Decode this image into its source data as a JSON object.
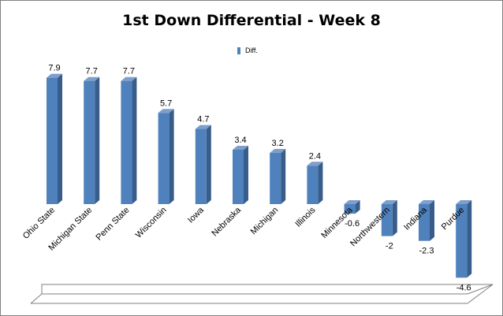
{
  "chart_data": {
    "type": "bar",
    "title": "1st Down Differential - Week 8",
    "categories": [
      "Ohio State",
      "Michigan State",
      "Penn State",
      "Wisconsin",
      "Iowa",
      "Nebraska",
      "Michigan",
      "Illinois",
      "Minnesota",
      "Northwestern",
      "Indiana",
      "Purdue"
    ],
    "series": [
      {
        "name": "Diff.",
        "values": [
          7.9,
          7.7,
          7.7,
          5.7,
          4.7,
          3.4,
          3.2,
          2.4,
          -0.6,
          -2,
          -2.3,
          -4.6
        ]
      }
    ],
    "data_labels": [
      "7.9",
      "7.7",
      "7.7",
      "5.7",
      "4.7",
      "3.4",
      "3.2",
      "2.4",
      "-0.6",
      "-2",
      "-2.3",
      "-4.6"
    ],
    "legend_position": "top",
    "grid": false,
    "ylim": [
      -5,
      8
    ],
    "colors": {
      "front": "#4F81BD",
      "side": "#385D8A",
      "top": "#7E9FCC",
      "floor_edge": "#7F7F7F"
    }
  }
}
